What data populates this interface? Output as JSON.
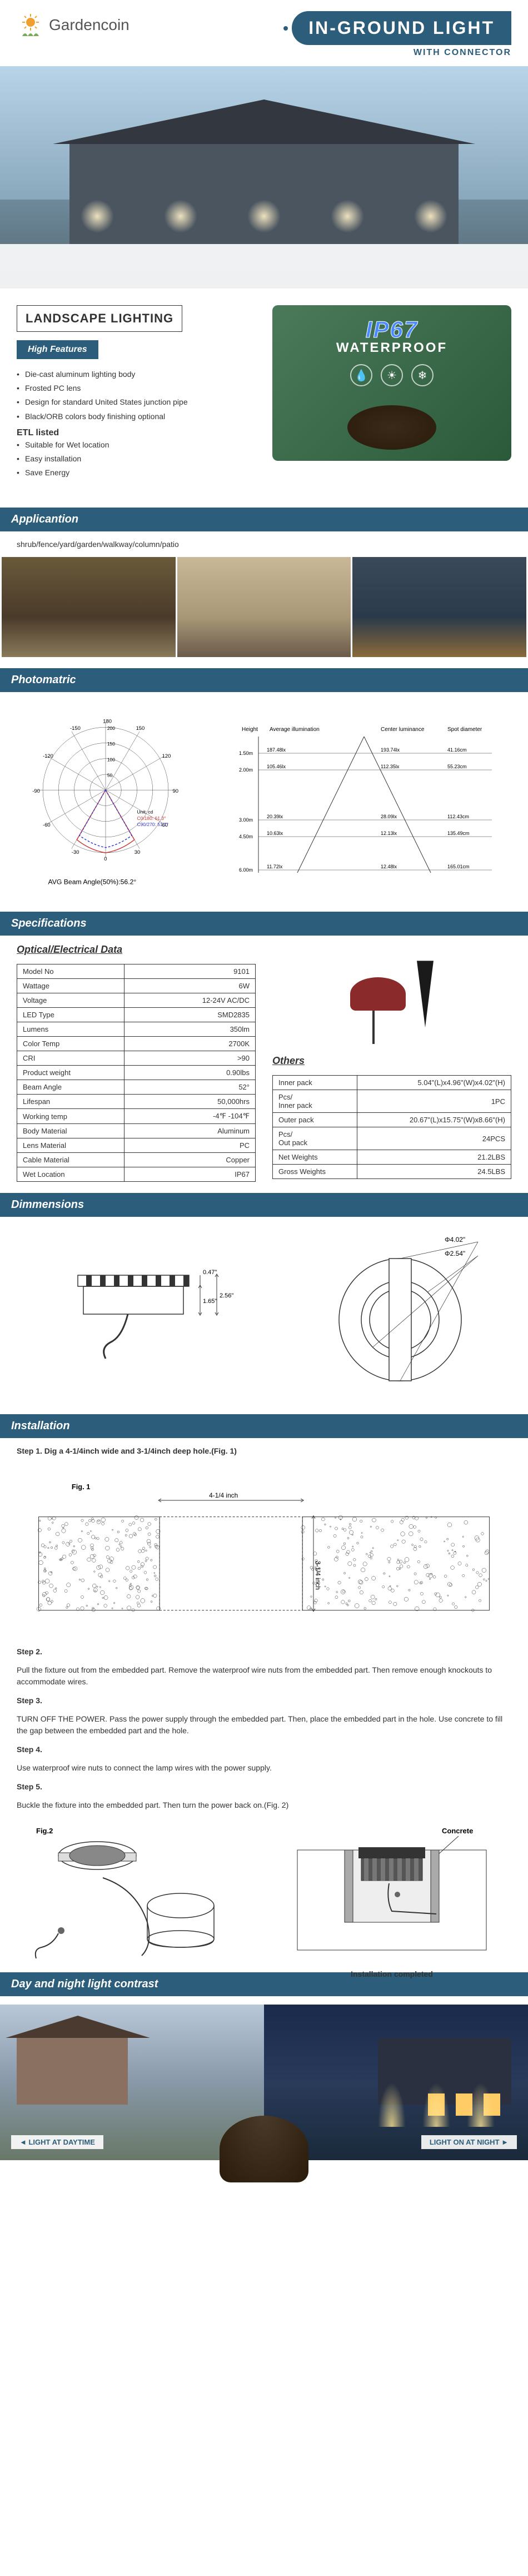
{
  "brand": "Gardencoin",
  "title": "IN-GROUND LIGHT",
  "subtitle": "WITH CONNECTOR",
  "landscape_title": "LANDSCAPE LIGHTING",
  "features_heading": "High Features",
  "features": [
    "Die-cast aluminum lighting body",
    "Frosted PC lens",
    "Design for standard United States junction pipe",
    "Black/ORB colors body finishing optional"
  ],
  "etl_listed": "ETL listed",
  "etl_features": [
    "Suitable for Wet location",
    "Easy installation",
    "Save Energy"
  ],
  "ip67_title": "IP67",
  "ip67_sub": "WATERPROOF",
  "application_header": "Applicantion",
  "application_text": "shrub/fence/yard/garden/walkway/column/patio",
  "photomatric_header": "Photomatric",
  "polar_angles": [
    "-150",
    "-120",
    "-90",
    "-60",
    "-30",
    "0",
    "30",
    "60",
    "90",
    "120",
    "150"
  ],
  "polar_values": [
    50,
    100,
    150,
    200
  ],
  "polar_text1": "Unit: cd",
  "polar_text2": "C0/180: 61.3°",
  "polar_text3": "C90/270: 51.1°",
  "polar_footer": "AVG Beam Angle(50%):56.2°",
  "intensity_headers": [
    "Height",
    "Average illumination",
    "Center luminance",
    "Spot diameter"
  ],
  "intensity_data": [
    {
      "h": "1.50m",
      "ai": "187.48lx",
      "cl": "193.74lx",
      "sd": "41.16cm"
    },
    {
      "h": "2.00m",
      "ai": "105.46lx",
      "cl": "112.35lx",
      "sd": "55.23cm"
    },
    {
      "h": "3.00m",
      "ai": "20.39lx",
      "cl": "28.09lx",
      "sd": "112.43cm"
    },
    {
      "h": "4.50m",
      "ai": "10.63lx",
      "cl": "12.13lx",
      "sd": "135.49cm"
    },
    {
      "h": "6.00m",
      "ai": "11.72lx",
      "cl": "12.48lx",
      "sd": "165.01cm"
    }
  ],
  "spec_header": "Specifications",
  "optical_title": "Optical/Electrical Data",
  "specs": [
    {
      "k": "Model No",
      "v": "9101"
    },
    {
      "k": "Wattage",
      "v": "6W"
    },
    {
      "k": "Voltage",
      "v": "12-24V AC/DC"
    },
    {
      "k": "LED Type",
      "v": "SMD2835"
    },
    {
      "k": "Lumens",
      "v": "350lm"
    },
    {
      "k": "Color Temp",
      "v": "2700K"
    },
    {
      "k": "CRI",
      "v": ">90"
    },
    {
      "k": "Product weight",
      "v": "0.90lbs"
    },
    {
      "k": "Beam Angle",
      "v": "52°"
    },
    {
      "k": "Lifespan",
      "v": "50,000hrs"
    },
    {
      "k": "Working temp",
      "v": "-4℉ -104℉"
    },
    {
      "k": "Body Material",
      "v": "Aluminum"
    },
    {
      "k": "Lens Material",
      "v": "PC"
    },
    {
      "k": "Cable Material",
      "v": "Copper"
    },
    {
      "k": "Wet Location",
      "v": "IP67"
    }
  ],
  "others_title": "Others",
  "others": [
    {
      "k": "Inner pack",
      "v": "5.04\"(L)x4.96\"(W)x4.02\"(H)"
    },
    {
      "k": "Pcs/\nInner pack",
      "v": "1PC"
    },
    {
      "k": "Outer pack",
      "v": "20.67\"(L)x15.75\"(W)x8.66\"(H)"
    },
    {
      "k": "Pcs/\nOut pack",
      "v": "24PCS"
    },
    {
      "k": "Net Weights",
      "v": "21.2LBS"
    },
    {
      "k": "Gross Weights",
      "v": "24.5LBS"
    }
  ],
  "dim_header": "Dimmensions",
  "dim_side_h1": "1.65\"",
  "dim_side_h2": "2.56\"",
  "dim_side_h3": "0.47\"",
  "dim_top_d1": "Φ4.02\"",
  "dim_top_d2": "Φ2.54\"",
  "install_header": "Installation",
  "step1": "Step 1. Dig a 4-1/4inch wide and 3-1/4inch deep hole.(Fig. 1)",
  "fig1_label": "Fig. 1",
  "fig1_w": "4-1/4 inch",
  "fig1_h": "3-1/4 inch",
  "step2": "Step 2.",
  "step2_text": "Pull the fixture out from the embedded part. Remove the waterproof wire nuts from the embedded part. Then remove enough knockouts to accommodate wires.",
  "step3": "Step 3.",
  "step3_text": "TURN OFF THE POWER. Pass the power supply through the embedded part. Then, place the embedded part in the hole. Use concrete to fill the gap between the embedded part and the hole.",
  "step4": "Step 4.",
  "step4_text": "Use waterproof wire nuts to connect the lamp wires with the power supply.",
  "step5": "Step 5.",
  "step5_text": "Buckle the fixture into the embedded part. Then turn the power back on.(Fig. 2)",
  "fig2_label": "Fig.2",
  "concrete_label": "Concrete",
  "install_complete": "Installation completed",
  "contrast_header": "Day and night light contrast",
  "day_label": "LIGHT AT DAYTIME",
  "night_label": "LIGHT ON AT NIGHT",
  "colors": {
    "primary": "#2c5d7a",
    "accent": "#f0a030",
    "text": "#333333"
  }
}
